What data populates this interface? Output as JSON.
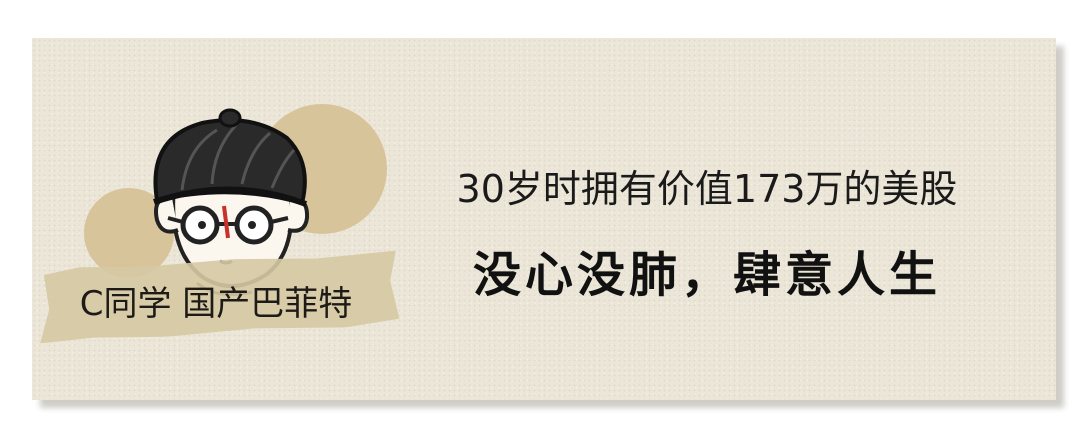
{
  "banner": {
    "signature": "C同学 国产巴菲特",
    "subtitle": "30岁时拥有价值173万的美股",
    "title": "没心没肺，肆意人生"
  },
  "character": {
    "icon": "cartoon-boy-avatar-icon"
  },
  "colors": {
    "background": "#ebe6d7",
    "accent_circle": "#d8c49a",
    "tape": "#d6c9a3",
    "text": "#111111"
  }
}
